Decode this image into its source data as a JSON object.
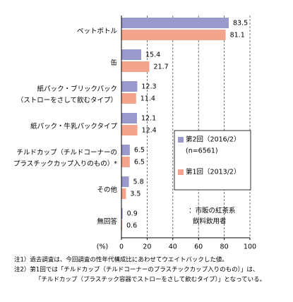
{
  "chart_data": {
    "type": "bar",
    "orientation": "horizontal",
    "categories": [
      [
        "ペットボトル"
      ],
      [
        "缶"
      ],
      [
        "紙パック・ブリックパック",
        "（ストローをさして飲むタイプ）"
      ],
      [
        "紙パック・牛乳パックタイプ"
      ],
      [
        "チルドカップ（チルドコーナーの",
        "プラスチックカップ入りのもの）*"
      ],
      [
        "その他"
      ],
      [
        "無回答"
      ]
    ],
    "series": [
      {
        "name": "第2回（2016/2）",
        "legend_note": "(n=6561)",
        "color": "#9999cc",
        "values": [
          83.5,
          15.4,
          12.3,
          12.1,
          6.5,
          5.8,
          0.9
        ]
      },
      {
        "name": "第1回（2013/2）",
        "color": "#f4a38c",
        "values": [
          81.1,
          21.7,
          11.4,
          12.4,
          6.5,
          3.5,
          0.6
        ]
      }
    ],
    "xlabel": "(%)",
    "xlim": [
      0,
      100
    ],
    "xticks": [
      0,
      20,
      40,
      60,
      80,
      100
    ],
    "grid": true,
    "annotation": [
      "：市販の紅茶系",
      "飲料飲用者"
    ],
    "notes": [
      "注1）過去調査は、今回調査の性年代構成比にあわせてウエイトバックした値。",
      "注2）第1回では「チルドカップ（チルドコーナーのプラスチックカップ入りのもの）」は、",
      "「チルドカップ（プラスチック容器でストローをさして飲むタイプ）」となっている。"
    ]
  }
}
